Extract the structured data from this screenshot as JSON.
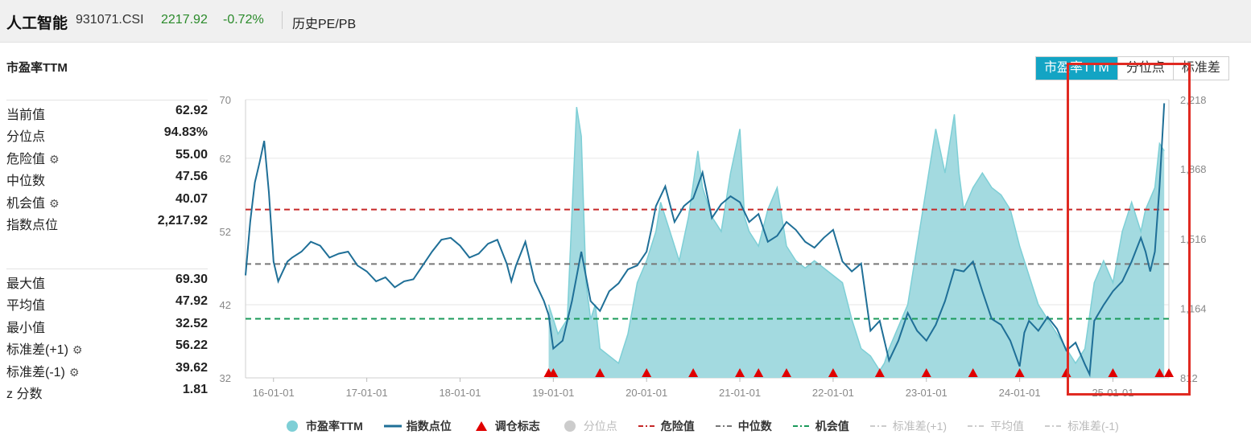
{
  "header": {
    "index_name": "人工智能",
    "index_code": "931071.CSI",
    "price": "2217.92",
    "change": "-0.72%",
    "history_link": "历史PE/PB"
  },
  "metric_title": "市盈率TTM",
  "tabs": [
    "市盈率TTM",
    "分位点",
    "标准差"
  ],
  "stats_top": [
    {
      "label": "当前值",
      "value": "62.92",
      "gear": false
    },
    {
      "label": "分位点",
      "value": "94.83%",
      "gear": false
    },
    {
      "label": "危险值",
      "value": "55.00",
      "gear": true
    },
    {
      "label": "中位数",
      "value": "47.56",
      "gear": false
    },
    {
      "label": "机会值",
      "value": "40.07",
      "gear": true
    },
    {
      "label": "指数点位",
      "value": "2,217.92",
      "gear": false
    }
  ],
  "stats_bottom": [
    {
      "label": "最大值",
      "value": "69.30",
      "gear": false
    },
    {
      "label": "平均值",
      "value": "47.92",
      "gear": false
    },
    {
      "label": "最小值",
      "value": "32.52",
      "gear": false
    },
    {
      "label": "标准差(+1)",
      "value": "56.22",
      "gear": true
    },
    {
      "label": "标准差(-1)",
      "value": "39.62",
      "gear": true
    },
    {
      "label": "z 分数",
      "value": "1.81",
      "gear": false
    }
  ],
  "legend": [
    {
      "label": "市盈率TTM",
      "symbol": "dot",
      "color": "#7ecfd6",
      "active": true
    },
    {
      "label": "指数点位",
      "symbol": "line",
      "color": "#1f6f97",
      "active": true
    },
    {
      "label": "调仓标志",
      "symbol": "triangle",
      "color": "#e00000",
      "active": true
    },
    {
      "label": "分位点",
      "symbol": "dot",
      "color": "#cccccc",
      "active": false
    },
    {
      "label": "危险值",
      "symbol": "dash",
      "color": "#c62828",
      "active": true
    },
    {
      "label": "中位数",
      "symbol": "dash",
      "color": "#777777",
      "active": true
    },
    {
      "label": "机会值",
      "symbol": "dash",
      "color": "#1a9a5a",
      "active": true
    },
    {
      "label": "标准差(+1)",
      "symbol": "dash",
      "color": "#cccccc",
      "active": false
    },
    {
      "label": "平均值",
      "symbol": "dash",
      "color": "#cccccc",
      "active": false
    },
    {
      "label": "标准差(-1)",
      "symbol": "dash",
      "color": "#cccccc",
      "active": false
    }
  ],
  "chart_data": {
    "type": "area",
    "y_left_ticks": [
      "70",
      "62",
      "52",
      "42",
      "32"
    ],
    "y_left_range": [
      32,
      70
    ],
    "y_right_ticks": [
      "2,218",
      "1,868",
      "1,516",
      "1,164",
      "812"
    ],
    "y_right_range": [
      812,
      2218
    ],
    "x_ticks": [
      "16-01-01",
      "17-01-01",
      "18-01-01",
      "19-01-01",
      "20-01-01",
      "21-01-01",
      "22-01-01",
      "23-01-01",
      "24-01-01",
      "25-01-01"
    ],
    "x_range": [
      2015.7,
      2025.6
    ],
    "reference_lines": {
      "danger": 55.0,
      "median": 47.56,
      "opportunity": 40.07
    },
    "colors": {
      "pe_fill": "#9ed8de",
      "pe_line": "#7ecfd6",
      "index_line": "#1f6f97",
      "danger": "#c62828",
      "median": "#777777",
      "opportunity": "#1a9a5a",
      "marker": "#e00000"
    },
    "series": [
      {
        "name": "市盈率TTM",
        "x": [
          2018.95,
          2019.05,
          2019.15,
          2019.25,
          2019.3,
          2019.35,
          2019.4,
          2019.45,
          2019.5,
          2019.6,
          2019.7,
          2019.8,
          2019.9,
          2020.0,
          2020.1,
          2020.15,
          2020.25,
          2020.35,
          2020.45,
          2020.55,
          2020.6,
          2020.7,
          2020.8,
          2020.9,
          2021.0,
          2021.05,
          2021.1,
          2021.2,
          2021.3,
          2021.4,
          2021.5,
          2021.6,
          2021.7,
          2021.8,
          2021.9,
          2022.0,
          2022.1,
          2022.2,
          2022.3,
          2022.4,
          2022.5,
          2022.55,
          2022.6,
          2022.7,
          2022.8,
          2022.9,
          2023.0,
          2023.1,
          2023.2,
          2023.3,
          2023.35,
          2023.4,
          2023.5,
          2023.6,
          2023.7,
          2023.8,
          2023.9,
          2024.0,
          2024.1,
          2024.2,
          2024.3,
          2024.4,
          2024.5,
          2024.6,
          2024.7,
          2024.8,
          2024.9,
          2025.0,
          2025.1,
          2025.2,
          2025.3,
          2025.35,
          2025.45,
          2025.5,
          2025.55
        ],
        "y": [
          42,
          38,
          40,
          69,
          65,
          45,
          40,
          42,
          36,
          35,
          34,
          38,
          45,
          48,
          52,
          56,
          52,
          48,
          54,
          63,
          58,
          54,
          52,
          60,
          66,
          54,
          52,
          50,
          55,
          58,
          50,
          48,
          47,
          48,
          47,
          46,
          45,
          40,
          36,
          35,
          33,
          34,
          36,
          39,
          42,
          50,
          58,
          66,
          60,
          68,
          60,
          55,
          58,
          60,
          58,
          57,
          55,
          50,
          46,
          42,
          40,
          38,
          36,
          34,
          36,
          45,
          48,
          45,
          52,
          56,
          52,
          55,
          58,
          64,
          63
        ]
      },
      {
        "name": "指数点位",
        "x": [
          2015.7,
          2015.75,
          2015.8,
          2015.85,
          2015.9,
          2015.95,
          2016.0,
          2016.05,
          2016.1,
          2016.15,
          2016.2,
          2016.3,
          2016.4,
          2016.5,
          2016.6,
          2016.7,
          2016.8,
          2016.9,
          2017.0,
          2017.1,
          2017.2,
          2017.3,
          2017.4,
          2017.5,
          2017.6,
          2017.7,
          2017.8,
          2017.9,
          2018.0,
          2018.1,
          2018.2,
          2018.3,
          2018.4,
          2018.5,
          2018.55,
          2018.6,
          2018.7,
          2018.8,
          2018.9,
          2018.95,
          2019.0,
          2019.1,
          2019.2,
          2019.3,
          2019.4,
          2019.5,
          2019.6,
          2019.7,
          2019.8,
          2019.9,
          2020.0,
          2020.05,
          2020.1,
          2020.2,
          2020.3,
          2020.4,
          2020.5,
          2020.6,
          2020.7,
          2020.8,
          2020.9,
          2021.0,
          2021.1,
          2021.2,
          2021.3,
          2021.4,
          2021.5,
          2021.6,
          2021.7,
          2021.8,
          2021.9,
          2022.0,
          2022.1,
          2022.2,
          2022.3,
          2022.4,
          2022.5,
          2022.6,
          2022.7,
          2022.8,
          2022.9,
          2023.0,
          2023.1,
          2023.2,
          2023.3,
          2023.4,
          2023.5,
          2023.6,
          2023.7,
          2023.8,
          2023.9,
          2024.0,
          2024.05,
          2024.1,
          2024.2,
          2024.3,
          2024.4,
          2024.5,
          2024.6,
          2024.7,
          2024.75,
          2024.8,
          2024.9,
          2025.0,
          2025.1,
          2025.2,
          2025.3,
          2025.35,
          2025.4,
          2025.45,
          2025.5,
          2025.55
        ],
        "y": [
          1330,
          1600,
          1800,
          1900,
          2010,
          1750,
          1400,
          1300,
          1350,
          1400,
          1420,
          1450,
          1500,
          1480,
          1420,
          1440,
          1450,
          1380,
          1350,
          1300,
          1320,
          1270,
          1300,
          1310,
          1380,
          1450,
          1510,
          1520,
          1480,
          1420,
          1440,
          1490,
          1510,
          1390,
          1300,
          1380,
          1500,
          1300,
          1200,
          1130,
          960,
          1000,
          1200,
          1450,
          1200,
          1150,
          1250,
          1290,
          1360,
          1380,
          1450,
          1560,
          1680,
          1780,
          1600,
          1680,
          1720,
          1850,
          1620,
          1690,
          1730,
          1700,
          1600,
          1640,
          1500,
          1530,
          1600,
          1560,
          1500,
          1470,
          1520,
          1560,
          1400,
          1350,
          1390,
          1050,
          1100,
          900,
          1000,
          1140,
          1050,
          1000,
          1080,
          1200,
          1360,
          1350,
          1400,
          1250,
          1110,
          1080,
          1000,
          870,
          1040,
          1100,
          1050,
          1120,
          1060,
          950,
          990,
          880,
          830,
          1100,
          1180,
          1250,
          1300,
          1400,
          1520,
          1450,
          1350,
          1450,
          1780,
          2200
        ]
      }
    ],
    "markers_x": [
      2018.95,
      2019.0,
      2019.5,
      2020.0,
      2020.5,
      2021.0,
      2021.2,
      2021.5,
      2022.0,
      2022.5,
      2023.0,
      2023.5,
      2024.0,
      2024.5,
      2025.0,
      2025.5,
      2025.6
    ]
  }
}
